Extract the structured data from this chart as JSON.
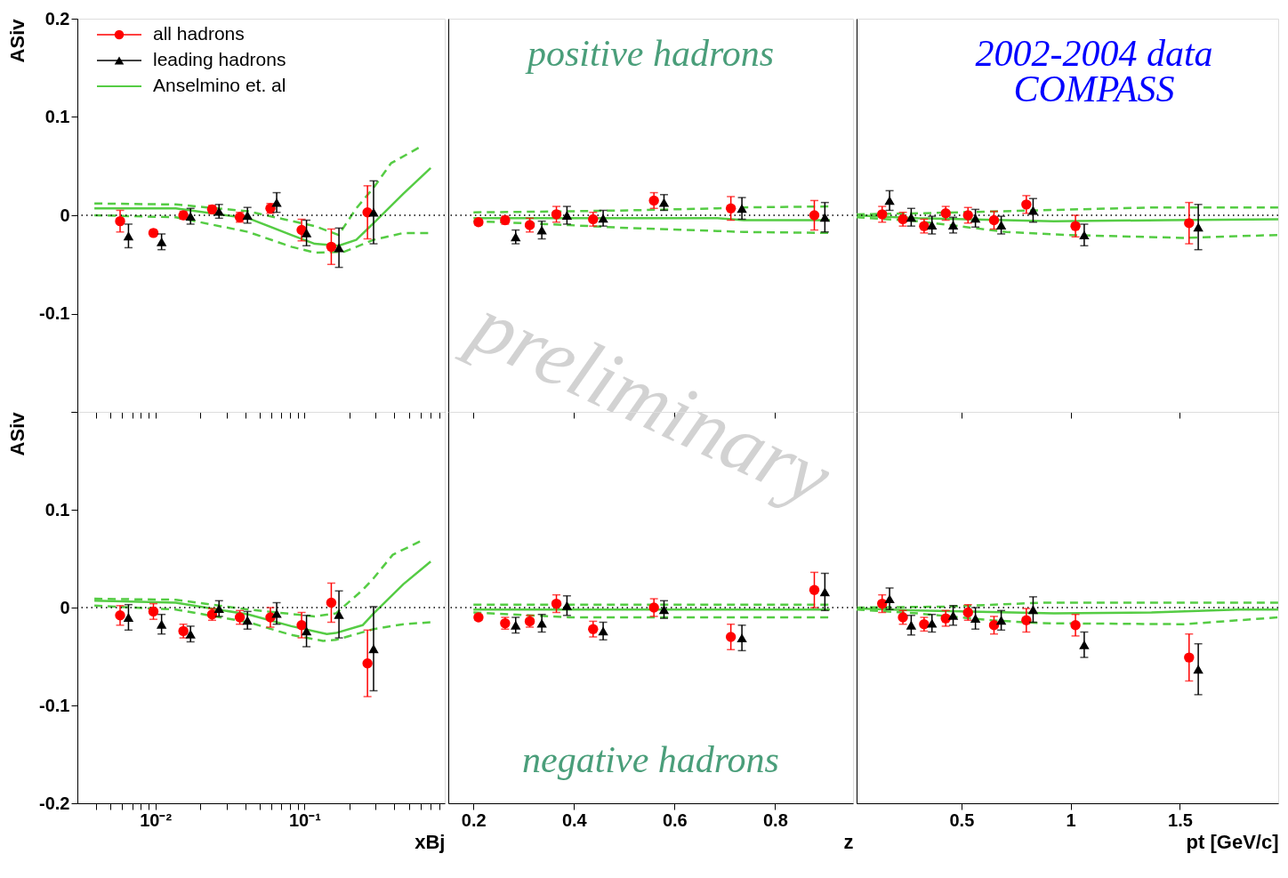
{
  "chart_data": [
    {
      "type": "scatter",
      "ylabel": "ASiv",
      "log": "x",
      "tick_labels": "y",
      "legend": "top left",
      "xlim": [
        0.003,
        0.87
      ],
      "ylim": [
        -0.2,
        0.2
      ],
      "xticks": [
        {
          "value": 0.004,
          "label": null
        },
        {
          "value": 0.005,
          "label": null
        },
        {
          "value": 0.006,
          "label": null
        },
        {
          "value": 0.007,
          "label": null
        },
        {
          "value": 0.008,
          "label": null
        },
        {
          "value": 0.009,
          "label": null
        },
        {
          "value": 0.01,
          "label": null
        },
        {
          "value": 0.02,
          "label": null
        },
        {
          "value": 0.03,
          "label": null
        },
        {
          "value": 0.04,
          "label": null
        },
        {
          "value": 0.05,
          "label": null
        },
        {
          "value": 0.06,
          "label": null
        },
        {
          "value": 0.07,
          "label": null
        },
        {
          "value": 0.08,
          "label": null
        },
        {
          "value": 0.09,
          "label": null
        },
        {
          "value": 0.1,
          "label": null
        },
        {
          "value": 0.2,
          "label": null
        },
        {
          "value": 0.3,
          "label": null
        },
        {
          "value": 0.4,
          "label": null
        },
        {
          "value": 0.5,
          "label": null
        },
        {
          "value": 0.6,
          "label": null
        },
        {
          "value": 0.7,
          "label": null
        },
        {
          "value": 0.8,
          "label": null
        }
      ],
      "yticks": [
        {
          "value": -0.2,
          "label": null
        },
        -0.1,
        0,
        0.1,
        0.2
      ],
      "ref_lines": [
        {
          "axis": "y",
          "value": 0,
          "line_style": "dotted",
          "color": "#000000"
        }
      ],
      "series": [
        {
          "name": "all hadrons",
          "type": "scatter",
          "marker": "circle",
          "color": "#ff0000",
          "x": [
            0.0058,
            0.0097,
            0.0154,
            0.024,
            0.0368,
            0.059,
            0.0955,
            0.151,
            0.264
          ],
          "values": [
            -0.006,
            -0.018,
            0.0,
            0.006,
            -0.002,
            0.007,
            -0.015,
            -0.032,
            0.003
          ],
          "errors": [
            0.011,
            0.003,
            0.004,
            0.004,
            0.005,
            0.005,
            0.011,
            0.018,
            0.027
          ]
        },
        {
          "name": "leading hadrons",
          "type": "scatter",
          "marker": "triangle",
          "color": "#000000",
          "x": [
            0.0066,
            0.011,
            0.0172,
            0.0267,
            0.0414,
            0.065,
            0.103,
            0.17,
            0.29
          ],
          "values": [
            -0.021,
            -0.027,
            -0.001,
            0.004,
            0.0,
            0.013,
            -0.018,
            -0.033,
            0.003
          ],
          "errors": [
            0.012,
            0.008,
            0.008,
            0.007,
            0.008,
            0.01,
            0.013,
            0.02,
            0.032
          ]
        },
        {
          "name": "Anselmino et. al",
          "type": "line",
          "line_style": "solid",
          "color": "#55cc44",
          "x": [
            0.0039,
            0.0137,
            0.042,
            0.0814,
            0.117,
            0.169,
            0.222,
            0.29,
            0.46,
            0.7
          ],
          "values": [
            0.007,
            0.007,
            -0.003,
            -0.02,
            -0.029,
            -0.031,
            -0.025,
            -0.008,
            0.022,
            0.048
          ]
        },
        {
          "type": "line",
          "line_style": "dashed",
          "color": "#55cc44",
          "x": [
            0.0039,
            0.0137,
            0.042,
            0.117,
            0.169,
            0.222,
            0.29,
            0.38,
            0.62
          ],
          "values": [
            0.012,
            0.011,
            0.004,
            -0.011,
            -0.02,
            0.007,
            0.028,
            0.053,
            0.071
          ]
        },
        {
          "type": "line",
          "line_style": "dashed",
          "color": "#55cc44",
          "x": [
            0.0039,
            0.0137,
            0.042,
            0.0814,
            0.117,
            0.185,
            0.29,
            0.46,
            0.7
          ],
          "values": [
            0.0,
            -0.002,
            -0.017,
            -0.032,
            -0.038,
            -0.037,
            -0.025,
            -0.018,
            -0.018
          ]
        }
      ]
    },
    {
      "type": "scatter",
      "tick_labels": false,
      "xlim": [
        0.15,
        0.955
      ],
      "ylim": [
        -0.2,
        0.2
      ],
      "xticks": [
        0.2,
        0.4,
        0.6,
        0.8
      ],
      "yticks": [
        -0.2,
        -0.1,
        0,
        0.1,
        0.2
      ],
      "annotations": [
        "positive hadrons"
      ],
      "ref_lines": [
        {
          "axis": "y",
          "value": 0,
          "line_style": "dotted",
          "color": "#000000"
        }
      ],
      "series": [
        {
          "type": "scatter",
          "marker": "circle",
          "color": "#ff0000",
          "x": [
            0.21,
            0.263,
            0.312,
            0.365,
            0.438,
            0.559,
            0.712,
            0.878
          ],
          "values": [
            -0.007,
            -0.005,
            -0.01,
            0.001,
            -0.004,
            0.015,
            0.007,
            0.0
          ],
          "errors": [
            0.003,
            0.004,
            0.007,
            0.008,
            0.007,
            0.008,
            0.012,
            0.015
          ]
        },
        {
          "type": "scatter",
          "marker": "triangle",
          "color": "#000000",
          "x": [
            0.284,
            0.336,
            0.386,
            0.458,
            0.579,
            0.734,
            0.899
          ],
          "values": [
            -0.022,
            -0.015,
            0.0,
            -0.003,
            0.013,
            0.007,
            -0.002
          ],
          "errors": [
            0.007,
            0.009,
            0.009,
            0.008,
            0.008,
            0.011,
            0.015
          ]
        },
        {
          "type": "line",
          "line_style": "solid",
          "color": "#55cc44",
          "x": [
            0.2,
            0.39,
            0.508,
            0.685,
            0.738,
            0.909
          ],
          "values": [
            -0.003,
            -0.003,
            -0.003,
            -0.003,
            -0.005,
            -0.005
          ]
        },
        {
          "type": "line",
          "line_style": "dashed",
          "color": "#55cc44",
          "x": [
            0.2,
            0.39,
            0.508,
            0.685,
            0.738,
            0.909
          ],
          "values": [
            0.003,
            0.004,
            0.005,
            0.007,
            0.008,
            0.009
          ]
        },
        {
          "type": "line",
          "line_style": "dashed",
          "color": "#55cc44",
          "x": [
            0.2,
            0.39,
            0.508,
            0.685,
            0.738,
            0.909
          ],
          "values": [
            -0.006,
            -0.01,
            -0.013,
            -0.016,
            -0.017,
            -0.018
          ]
        }
      ]
    },
    {
      "type": "scatter",
      "tick_labels": false,
      "xlim": [
        0.02,
        1.95
      ],
      "ylim": [
        -0.2,
        0.2
      ],
      "xticks": [
        0.5,
        1,
        1.5
      ],
      "yticks": [
        -0.2,
        -0.1,
        0,
        0.1,
        0.2
      ],
      "annotations": [
        "2002-2004 data",
        "COMPASS"
      ],
      "ref_lines": [
        {
          "axis": "y",
          "value": 0,
          "line_style": "dotted",
          "color": "#000000"
        }
      ],
      "series": [
        {
          "type": "scatter",
          "marker": "circle",
          "color": "#ff0000",
          "x": [
            0.137,
            0.232,
            0.329,
            0.428,
            0.53,
            0.649,
            0.797,
            1.022,
            1.542
          ],
          "values": [
            0.001,
            -0.004,
            -0.011,
            0.002,
            0.0,
            -0.005,
            0.011,
            -0.011,
            -0.008
          ],
          "errors": [
            0.008,
            0.007,
            0.007,
            0.007,
            0.008,
            0.009,
            0.009,
            0.011,
            0.021
          ]
        },
        {
          "type": "scatter",
          "marker": "triangle",
          "color": "#000000",
          "x": [
            0.171,
            0.27,
            0.365,
            0.462,
            0.564,
            0.682,
            0.828,
            1.062,
            1.584
          ],
          "values": [
            0.015,
            -0.002,
            -0.01,
            -0.01,
            -0.003,
            -0.01,
            0.005,
            -0.02,
            -0.012
          ],
          "errors": [
            0.01,
            0.009,
            0.009,
            0.008,
            0.009,
            0.009,
            0.012,
            0.011,
            0.023
          ]
        },
        {
          "type": "line",
          "line_style": "solid",
          "color": "#55cc44",
          "x": [
            0.02,
            0.3,
            0.923,
            1.438,
            1.95
          ],
          "values": [
            0.0,
            -0.003,
            -0.006,
            -0.005,
            -0.004
          ]
        },
        {
          "type": "line",
          "line_style": "dashed",
          "color": "#55cc44",
          "x": [
            0.02,
            0.3,
            0.84,
            1.38,
            1.95
          ],
          "values": [
            0.001,
            0.002,
            0.005,
            0.008,
            0.008
          ]
        },
        {
          "type": "line",
          "line_style": "dashed",
          "color": "#55cc44",
          "x": [
            0.02,
            0.3,
            0.706,
            0.976,
            1.52,
            1.95
          ],
          "values": [
            -0.002,
            -0.006,
            -0.017,
            -0.02,
            -0.023,
            -0.02
          ]
        }
      ]
    },
    {
      "type": "scatter",
      "xlabel": "xBj",
      "ylabel": "ASiv",
      "log": "x",
      "xlim": [
        0.003,
        0.87
      ],
      "ylim": [
        -0.2,
        0.2
      ],
      "xticks": [
        {
          "value": 0.004,
          "label": null
        },
        {
          "value": 0.005,
          "label": null
        },
        {
          "value": 0.006,
          "label": null
        },
        {
          "value": 0.007,
          "label": null
        },
        {
          "value": 0.008,
          "label": null
        },
        {
          "value": 0.009,
          "label": null
        },
        {
          "value": 0.01,
          "label": "10⁻²"
        },
        {
          "value": 0.02,
          "label": null
        },
        {
          "value": 0.03,
          "label": null
        },
        {
          "value": 0.04,
          "label": null
        },
        {
          "value": 0.05,
          "label": null
        },
        {
          "value": 0.06,
          "label": null
        },
        {
          "value": 0.07,
          "label": null
        },
        {
          "value": 0.08,
          "label": null
        },
        {
          "value": 0.09,
          "label": null
        },
        {
          "value": 0.1,
          "label": "10⁻¹"
        },
        {
          "value": 0.2,
          "label": null
        },
        {
          "value": 0.3,
          "label": null
        },
        {
          "value": 0.4,
          "label": null
        },
        {
          "value": 0.5,
          "label": null
        },
        {
          "value": 0.6,
          "label": null
        },
        {
          "value": 0.7,
          "label": null
        },
        {
          "value": 0.8,
          "label": null
        }
      ],
      "yticks": [
        -0.2,
        -0.1,
        0,
        0.1,
        {
          "value": 0.2,
          "label": null
        }
      ],
      "ref_lines": [
        {
          "axis": "y",
          "value": 0,
          "line_style": "dotted",
          "color": "#000000"
        }
      ],
      "series": [
        {
          "type": "scatter",
          "marker": "circle",
          "color": "#ff0000",
          "x": [
            0.0058,
            0.0097,
            0.0154,
            0.024,
            0.0368,
            0.059,
            0.0955,
            0.151,
            0.264
          ],
          "values": [
            -0.008,
            -0.004,
            -0.024,
            -0.007,
            -0.01,
            -0.01,
            -0.018,
            0.005,
            -0.057
          ],
          "errors": [
            0.01,
            0.008,
            0.007,
            0.006,
            0.007,
            0.01,
            0.013,
            0.02,
            0.034
          ]
        },
        {
          "type": "scatter",
          "marker": "triangle",
          "color": "#000000",
          "x": [
            0.0066,
            0.011,
            0.0172,
            0.0267,
            0.0414,
            0.065,
            0.103,
            0.17,
            0.29
          ],
          "values": [
            -0.01,
            -0.017,
            -0.027,
            -0.001,
            -0.013,
            -0.006,
            -0.024,
            -0.007,
            -0.042
          ],
          "errors": [
            0.013,
            0.01,
            0.008,
            0.008,
            0.009,
            0.011,
            0.016,
            0.024,
            0.043
          ]
        },
        {
          "type": "line",
          "line_style": "solid",
          "color": "#55cc44",
          "x": [
            0.0039,
            0.0137,
            0.042,
            0.0814,
            0.141,
            0.162,
            0.245,
            0.29,
            0.46,
            0.7
          ],
          "values": [
            0.007,
            0.005,
            -0.007,
            -0.019,
            -0.027,
            -0.026,
            -0.018,
            -0.006,
            0.024,
            0.047
          ]
        },
        {
          "type": "line",
          "line_style": "dashed",
          "color": "#55cc44",
          "x": [
            0.0039,
            0.0137,
            0.042,
            0.117,
            0.162,
            0.245,
            0.29,
            0.39,
            0.62
          ],
          "values": [
            0.009,
            0.008,
            -0.002,
            -0.009,
            -0.006,
            0.018,
            0.03,
            0.054,
            0.069
          ]
        },
        {
          "type": "line",
          "line_style": "dashed",
          "color": "#55cc44",
          "x": [
            0.0039,
            0.0137,
            0.042,
            0.0814,
            0.133,
            0.162,
            0.29,
            0.46,
            0.7
          ],
          "values": [
            0.002,
            -0.002,
            -0.015,
            -0.028,
            -0.034,
            -0.033,
            -0.022,
            -0.017,
            -0.015
          ]
        }
      ]
    },
    {
      "type": "scatter",
      "xlabel": "z",
      "tick_labels": "x",
      "xlim": [
        0.15,
        0.955
      ],
      "ylim": [
        -0.2,
        0.2
      ],
      "xticks": [
        0.2,
        0.4,
        0.6,
        0.8
      ],
      "yticks": [
        -0.2,
        -0.1,
        0,
        0.1,
        0.2
      ],
      "annotations": [
        "negative hadrons"
      ],
      "ref_lines": [
        {
          "axis": "y",
          "value": 0,
          "line_style": "dotted",
          "color": "#000000"
        }
      ],
      "series": [
        {
          "type": "scatter",
          "marker": "circle",
          "color": "#ff0000",
          "x": [
            0.21,
            0.263,
            0.312,
            0.365,
            0.438,
            0.559,
            0.712,
            0.878
          ],
          "values": [
            -0.01,
            -0.016,
            -0.014,
            0.004,
            -0.022,
            0.0,
            -0.03,
            0.018
          ],
          "errors": [
            0.003,
            0.006,
            0.006,
            0.009,
            0.008,
            0.009,
            0.013,
            0.018
          ]
        },
        {
          "type": "scatter",
          "marker": "triangle",
          "color": "#000000",
          "x": [
            0.284,
            0.336,
            0.386,
            0.458,
            0.579,
            0.734,
            0.899
          ],
          "values": [
            -0.018,
            -0.016,
            0.002,
            -0.024,
            -0.002,
            -0.031,
            0.016
          ],
          "errors": [
            0.008,
            0.009,
            0.01,
            0.009,
            0.009,
            0.013,
            0.019
          ]
        },
        {
          "type": "line",
          "line_style": "solid",
          "color": "#55cc44",
          "x": [
            0.2,
            0.909
          ],
          "values": [
            -0.002,
            -0.002
          ]
        },
        {
          "type": "line",
          "line_style": "dashed",
          "color": "#55cc44",
          "x": [
            0.2,
            0.909
          ],
          "values": [
            0.003,
            0.003
          ]
        },
        {
          "type": "line",
          "line_style": "dashed",
          "color": "#55cc44",
          "x": [
            0.2,
            0.39,
            0.909
          ],
          "values": [
            -0.005,
            -0.01,
            -0.01
          ]
        }
      ]
    },
    {
      "type": "scatter",
      "xlabel": "pt [GeV/c]",
      "tick_labels": "x",
      "xlim": [
        0.02,
        1.95
      ],
      "ylim": [
        -0.2,
        0.2
      ],
      "xticks": [
        0.5,
        1,
        1.5
      ],
      "yticks": [
        -0.2,
        -0.1,
        0,
        0.1,
        0.2
      ],
      "ref_lines": [
        {
          "axis": "y",
          "value": 0,
          "line_style": "dotted",
          "color": "#000000"
        }
      ],
      "series": [
        {
          "type": "scatter",
          "marker": "circle",
          "color": "#ff0000",
          "x": [
            0.137,
            0.232,
            0.329,
            0.428,
            0.53,
            0.649,
            0.797,
            1.022,
            1.542
          ],
          "values": [
            0.004,
            -0.01,
            -0.017,
            -0.011,
            -0.005,
            -0.018,
            -0.013,
            -0.018,
            -0.051
          ],
          "errors": [
            0.009,
            0.007,
            0.007,
            0.008,
            0.008,
            0.009,
            0.012,
            0.011,
            0.024
          ]
        },
        {
          "type": "scatter",
          "marker": "triangle",
          "color": "#000000",
          "x": [
            0.171,
            0.27,
            0.365,
            0.462,
            0.564,
            0.682,
            0.828,
            1.062,
            1.584
          ],
          "values": [
            0.009,
            -0.018,
            -0.016,
            -0.008,
            -0.011,
            -0.013,
            -0.002,
            -0.038,
            -0.063
          ],
          "errors": [
            0.011,
            0.01,
            0.009,
            0.01,
            0.011,
            0.01,
            0.013,
            0.013,
            0.026
          ]
        },
        {
          "type": "line",
          "line_style": "solid",
          "color": "#55cc44",
          "x": [
            0.02,
            0.3,
            0.923,
            1.37,
            1.763,
            1.95
          ],
          "values": [
            -0.001,
            -0.003,
            -0.006,
            -0.005,
            -0.002,
            -0.002
          ]
        },
        {
          "type": "line",
          "line_style": "dashed",
          "color": "#55cc44",
          "x": [
            0.02,
            0.435,
            0.869,
            1.95
          ],
          "values": [
            0.0,
            0.001,
            0.005,
            0.005
          ]
        },
        {
          "type": "line",
          "line_style": "dashed",
          "color": "#55cc44",
          "x": [
            0.02,
            0.3,
            0.638,
            0.869,
            1.52,
            1.95
          ],
          "values": [
            -0.002,
            -0.006,
            -0.013,
            -0.016,
            -0.017,
            -0.01
          ]
        }
      ]
    },
    {
      "type": "other",
      "annotations": [
        "preliminary"
      ]
    }
  ]
}
